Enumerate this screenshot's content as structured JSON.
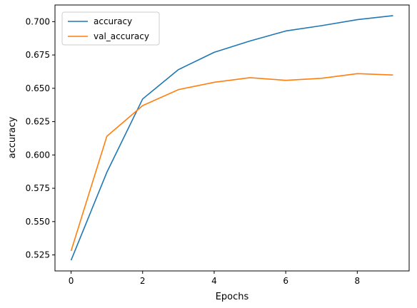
{
  "chart_data": {
    "type": "line",
    "title": "",
    "xlabel": "Epochs",
    "ylabel": "accuracy",
    "x": [
      0,
      1,
      2,
      3,
      4,
      5,
      6,
      7,
      8,
      9
    ],
    "xlim": [
      -0.45,
      9.45
    ],
    "ylim": [
      0.513,
      0.7125
    ],
    "xticks": [
      0,
      2,
      4,
      6,
      8
    ],
    "xtick_labels": [
      "0",
      "2",
      "4",
      "6",
      "8"
    ],
    "yticks": [
      0.525,
      0.55,
      0.575,
      0.6,
      0.625,
      0.65,
      0.675,
      0.7
    ],
    "ytick_labels": [
      "0.525",
      "0.550",
      "0.575",
      "0.600",
      "0.625",
      "0.650",
      "0.675",
      "0.700"
    ],
    "grid": false,
    "legend_position": "upper-left",
    "series": [
      {
        "name": "accuracy",
        "color": "#1f77b4",
        "values": [
          0.521,
          0.587,
          0.642,
          0.664,
          0.677,
          0.6855,
          0.693,
          0.697,
          0.7015,
          0.7045
        ]
      },
      {
        "name": "val_accuracy",
        "color": "#ff7f0e",
        "values": [
          0.528,
          0.614,
          0.637,
          0.649,
          0.6545,
          0.658,
          0.656,
          0.6575,
          0.661,
          0.66
        ]
      }
    ]
  }
}
